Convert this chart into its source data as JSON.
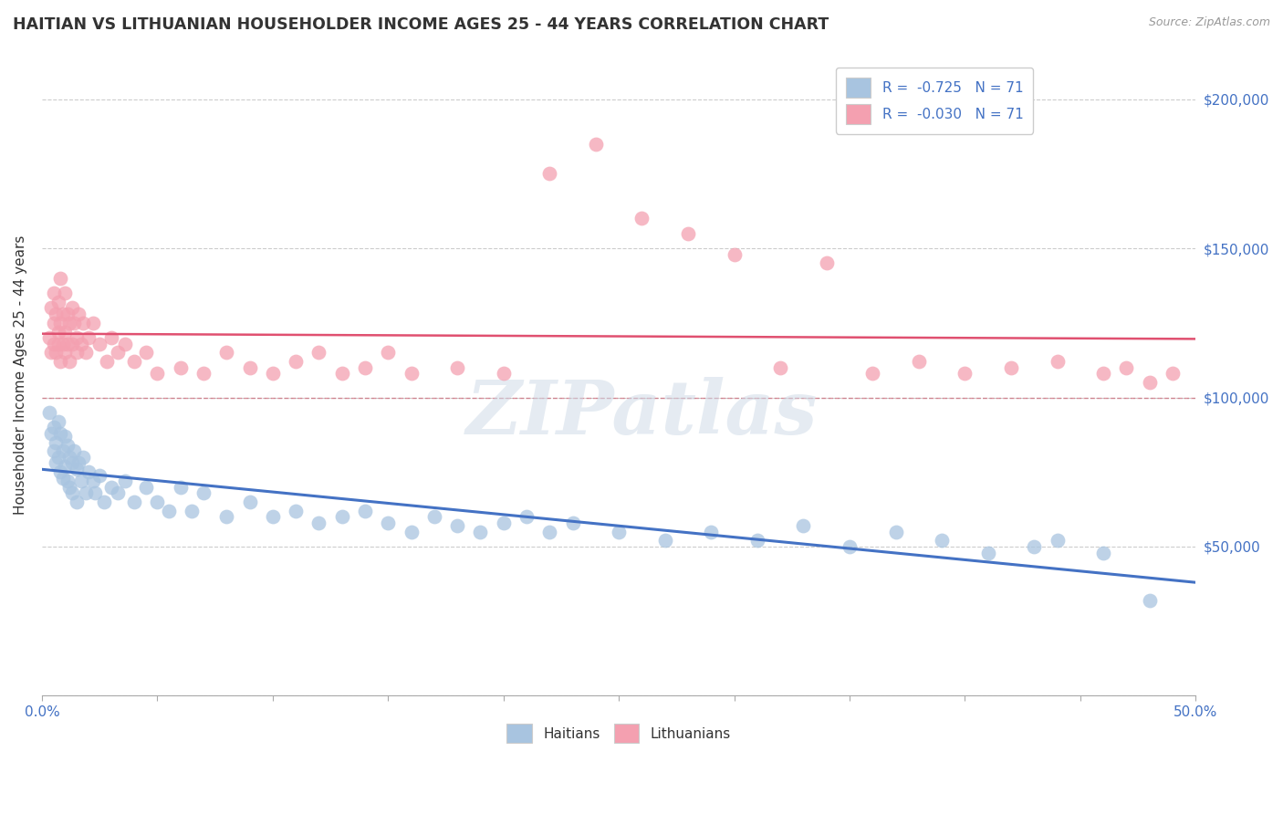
{
  "title": "HAITIAN VS LITHUANIAN HOUSEHOLDER INCOME AGES 25 - 44 YEARS CORRELATION CHART",
  "source": "Source: ZipAtlas.com",
  "ylabel": "Householder Income Ages 25 - 44 years",
  "xlim": [
    0.0,
    0.5
  ],
  "ylim": [
    0,
    215000
  ],
  "haitian_color": "#a8c4e0",
  "haitian_line_color": "#4472c4",
  "lithuanian_color": "#f4a0b0",
  "lithuanian_line_color": "#e05070",
  "legend_label1": "Haitians",
  "legend_label2": "Lithuanians",
  "watermark_text": "ZIPatlas",
  "haitian_x": [
    0.003,
    0.004,
    0.005,
    0.005,
    0.006,
    0.006,
    0.007,
    0.007,
    0.008,
    0.008,
    0.009,
    0.009,
    0.01,
    0.01,
    0.011,
    0.011,
    0.012,
    0.012,
    0.013,
    0.013,
    0.014,
    0.015,
    0.015,
    0.016,
    0.017,
    0.018,
    0.019,
    0.02,
    0.022,
    0.023,
    0.025,
    0.027,
    0.03,
    0.033,
    0.036,
    0.04,
    0.045,
    0.05,
    0.055,
    0.06,
    0.065,
    0.07,
    0.08,
    0.09,
    0.1,
    0.11,
    0.12,
    0.13,
    0.14,
    0.15,
    0.16,
    0.17,
    0.18,
    0.19,
    0.2,
    0.21,
    0.22,
    0.23,
    0.25,
    0.27,
    0.29,
    0.31,
    0.33,
    0.35,
    0.37,
    0.39,
    0.41,
    0.43,
    0.44,
    0.46,
    0.48
  ],
  "haitian_y": [
    95000,
    88000,
    90000,
    82000,
    85000,
    78000,
    92000,
    80000,
    88000,
    75000,
    82000,
    73000,
    87000,
    77000,
    84000,
    72000,
    80000,
    70000,
    78000,
    68000,
    82000,
    76000,
    65000,
    78000,
    72000,
    80000,
    68000,
    75000,
    72000,
    68000,
    74000,
    65000,
    70000,
    68000,
    72000,
    65000,
    70000,
    65000,
    62000,
    70000,
    62000,
    68000,
    60000,
    65000,
    60000,
    62000,
    58000,
    60000,
    62000,
    58000,
    55000,
    60000,
    57000,
    55000,
    58000,
    60000,
    55000,
    58000,
    55000,
    52000,
    55000,
    52000,
    57000,
    50000,
    55000,
    52000,
    48000,
    50000,
    52000,
    48000,
    32000
  ],
  "lithuanian_x": [
    0.003,
    0.004,
    0.004,
    0.005,
    0.005,
    0.005,
    0.006,
    0.006,
    0.007,
    0.007,
    0.007,
    0.008,
    0.008,
    0.008,
    0.009,
    0.009,
    0.01,
    0.01,
    0.01,
    0.011,
    0.011,
    0.012,
    0.012,
    0.013,
    0.013,
    0.014,
    0.015,
    0.015,
    0.016,
    0.017,
    0.018,
    0.019,
    0.02,
    0.022,
    0.025,
    0.028,
    0.03,
    0.033,
    0.036,
    0.04,
    0.045,
    0.05,
    0.06,
    0.07,
    0.08,
    0.09,
    0.1,
    0.11,
    0.12,
    0.13,
    0.14,
    0.15,
    0.16,
    0.18,
    0.2,
    0.22,
    0.24,
    0.26,
    0.28,
    0.3,
    0.32,
    0.34,
    0.36,
    0.38,
    0.4,
    0.42,
    0.44,
    0.46,
    0.47,
    0.48,
    0.49
  ],
  "lithuanian_y": [
    120000,
    115000,
    130000,
    125000,
    118000,
    135000,
    128000,
    115000,
    122000,
    132000,
    118000,
    125000,
    140000,
    112000,
    128000,
    118000,
    122000,
    135000,
    115000,
    128000,
    118000,
    125000,
    112000,
    130000,
    118000,
    125000,
    120000,
    115000,
    128000,
    118000,
    125000,
    115000,
    120000,
    125000,
    118000,
    112000,
    120000,
    115000,
    118000,
    112000,
    115000,
    108000,
    110000,
    108000,
    115000,
    110000,
    108000,
    112000,
    115000,
    108000,
    110000,
    115000,
    108000,
    110000,
    108000,
    175000,
    185000,
    160000,
    155000,
    148000,
    110000,
    145000,
    108000,
    112000,
    108000,
    110000,
    112000,
    108000,
    110000,
    105000,
    108000
  ]
}
